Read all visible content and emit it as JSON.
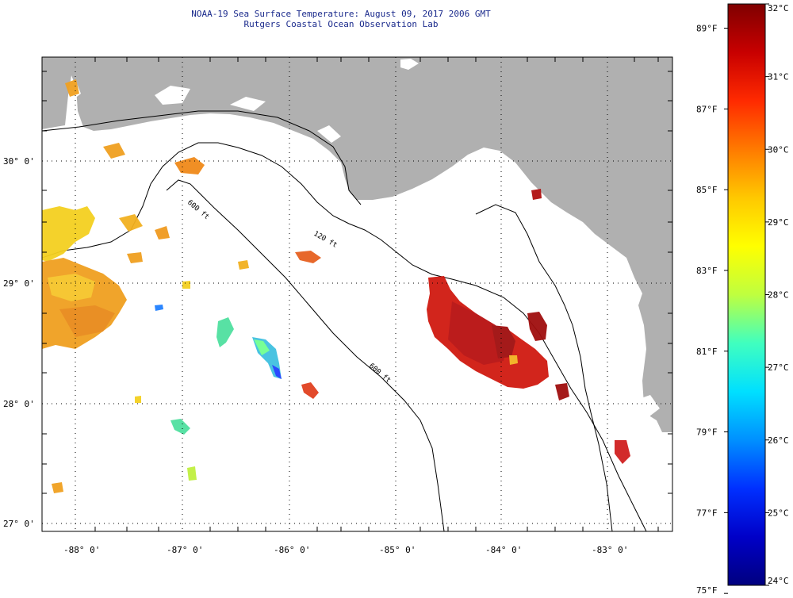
{
  "header": {
    "title": "NOAA-19 Sea Surface Temperature:  August 09, 2017 2006 GMT",
    "subtitle": "Rutgers Coastal Ocean Observation Lab"
  },
  "map": {
    "lon_range": [
      -88.3,
      -82.4
    ],
    "lat_range": [
      26.95,
      30.85
    ],
    "lon_ticks": [
      {
        "value": -88,
        "label": "-88° 0'"
      },
      {
        "value": -87,
        "label": "-87° 0'"
      },
      {
        "value": -86,
        "label": "-86° 0'"
      },
      {
        "value": -85,
        "label": "-85° 0'"
      },
      {
        "value": -84,
        "label": "-84° 0'"
      },
      {
        "value": -83,
        "label": "-83° 0'"
      }
    ],
    "lat_ticks": [
      {
        "value": 30,
        "label": "30° 0'"
      },
      {
        "value": 29,
        "label": "29° 0'"
      },
      {
        "value": 28,
        "label": "28° 0'"
      },
      {
        "value": 27,
        "label": "27° 0'"
      }
    ],
    "isobath_labels": [
      "120 ft",
      "600 ft",
      "600 ft"
    ],
    "colors": {
      "land": "#b0b0b0",
      "water": "#ffffff",
      "contour": "#000000"
    }
  },
  "colorbar": {
    "celsius_labels": [
      "32°C",
      "31°C",
      "30°C",
      "29°C",
      "28°C",
      "27°C",
      "26°C",
      "25°C",
      "24°C"
    ],
    "fahrenheit_labels": [
      "89°F",
      "87°F",
      "85°F",
      "83°F",
      "81°F",
      "79°F",
      "77°F",
      "75°F"
    ],
    "celsius_range": [
      24,
      32
    ],
    "gradient": [
      "#7f0000",
      "#c80000",
      "#ff2a00",
      "#ff7a00",
      "#ffc800",
      "#ffff00",
      "#bfff3f",
      "#40ffbf",
      "#00e0ff",
      "#0090ff",
      "#0030ff",
      "#0000c8",
      "#00007f"
    ]
  }
}
